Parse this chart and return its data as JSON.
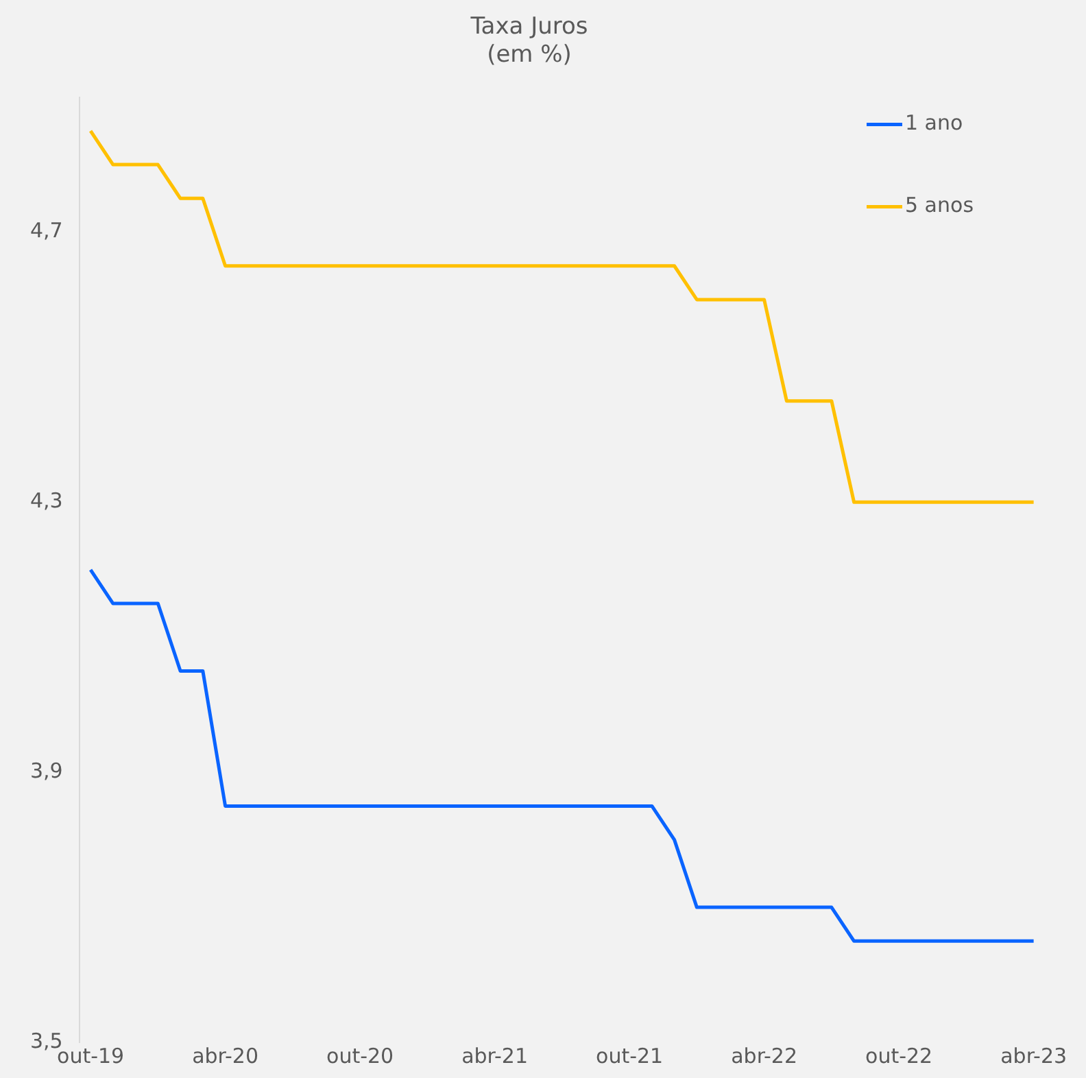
{
  "chart_data": {
    "type": "line",
    "title": "Taxa Juros",
    "subtitle": "(em %)",
    "categories": [
      "out-19",
      null,
      null,
      null,
      null,
      null,
      "abr-20",
      null,
      null,
      null,
      null,
      null,
      "out-20",
      null,
      null,
      null,
      null,
      null,
      "abr-21",
      null,
      null,
      null,
      null,
      null,
      "out-21",
      null,
      null,
      null,
      null,
      null,
      "abr-22",
      null,
      null,
      null,
      null,
      null,
      "out-22",
      null,
      null,
      null,
      null,
      null,
      "abr-23"
    ],
    "series": [
      {
        "name": "1 ano",
        "color": "#0a64ff",
        "values": [
          4.2,
          4.15,
          4.15,
          4.15,
          4.05,
          4.05,
          3.85,
          3.85,
          3.85,
          3.85,
          3.85,
          3.85,
          3.85,
          3.85,
          3.85,
          3.85,
          3.85,
          3.85,
          3.85,
          3.85,
          3.85,
          3.85,
          3.85,
          3.85,
          3.85,
          3.85,
          3.8,
          3.7,
          3.7,
          3.7,
          3.7,
          3.7,
          3.7,
          3.7,
          3.65,
          3.65,
          3.65,
          3.65,
          3.65,
          3.65,
          3.65,
          3.65,
          3.65
        ]
      },
      {
        "name": "5 anos",
        "color": "#ffc000",
        "values": [
          4.85,
          4.8,
          4.8,
          4.8,
          4.75,
          4.75,
          4.65,
          4.65,
          4.65,
          4.65,
          4.65,
          4.65,
          4.65,
          4.65,
          4.65,
          4.65,
          4.65,
          4.65,
          4.65,
          4.65,
          4.65,
          4.65,
          4.65,
          4.65,
          4.65,
          4.65,
          4.65,
          4.6,
          4.6,
          4.6,
          4.6,
          4.45,
          4.45,
          4.45,
          4.3,
          4.3,
          4.3,
          4.3,
          4.3,
          4.3,
          4.3,
          4.3,
          4.3
        ]
      }
    ],
    "ylim": [
      3.5,
      4.9
    ],
    "yticks": [
      {
        "value": 3.5,
        "label": "3,5"
      },
      {
        "value": 3.9,
        "label": "3,9"
      },
      {
        "value": 4.3,
        "label": "4,3"
      },
      {
        "value": 4.7,
        "label": "4,7"
      }
    ],
    "grid": false,
    "legend": "top right",
    "marker": "none",
    "line_style": "solid"
  }
}
